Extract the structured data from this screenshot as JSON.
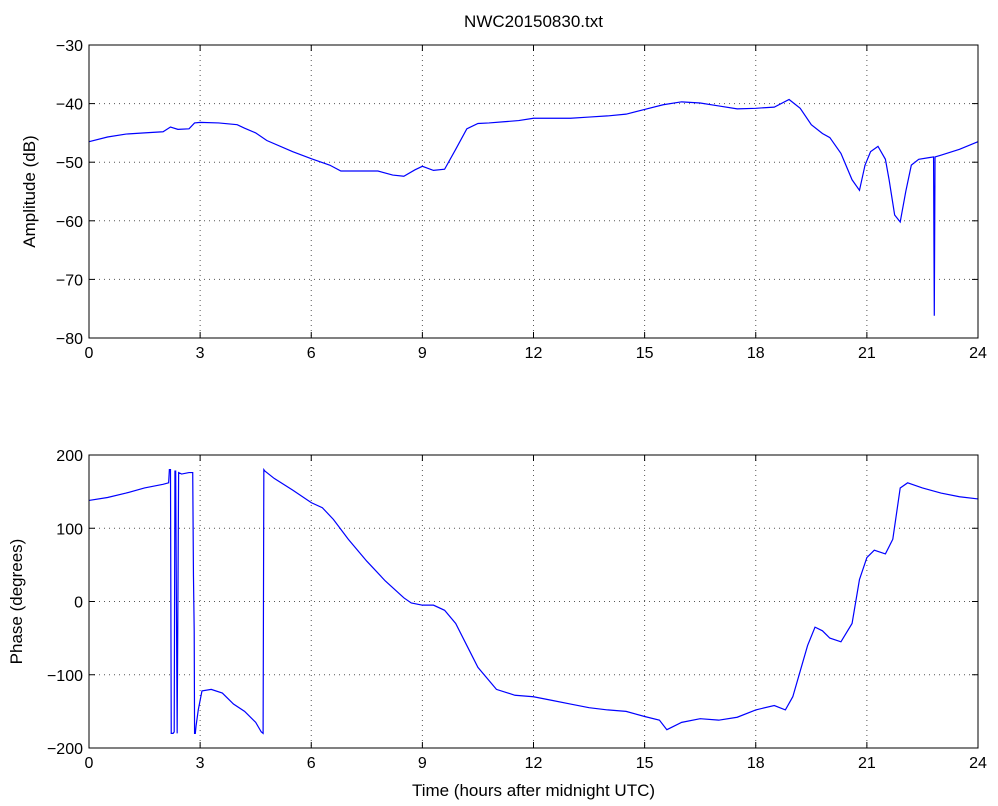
{
  "chart_data": [
    {
      "type": "line",
      "title": "NWC20150830.txt",
      "xlabel": "",
      "ylabel": "Amplitude (dB)",
      "xlim": [
        0,
        24
      ],
      "ylim": [
        -80,
        -30
      ],
      "xticks": [
        0,
        3,
        6,
        9,
        12,
        15,
        18,
        21,
        24
      ],
      "yticks": [
        -80,
        -70,
        -60,
        -50,
        -40,
        -30
      ],
      "ytick_labels": [
        "−80",
        "−70",
        "−60",
        "−50",
        "−40",
        "−30"
      ],
      "grid": true,
      "color": "#0000ff",
      "series": [
        {
          "x": [
            0,
            0.5,
            1,
            1.5,
            2,
            2.2,
            2.4,
            2.7,
            2.85,
            3,
            3.5,
            4,
            4.2,
            4.5,
            4.8,
            5.5,
            6,
            6.5,
            6.8,
            7.2,
            7.8,
            8.2,
            8.5,
            8.8,
            9,
            9.3,
            9.6,
            9.9,
            10.2,
            10.5,
            10.8,
            11.2,
            11.6,
            12,
            12.5,
            13,
            13.5,
            14,
            14.5,
            15,
            15.5,
            16,
            16.5,
            17,
            17.5,
            18,
            18.5,
            18.9,
            19.2,
            19.5,
            19.8,
            20,
            20.3,
            20.6,
            20.8,
            20.95,
            21.1,
            21.3,
            21.5,
            21.6,
            21.75,
            21.9,
            22.05,
            22.2,
            22.4,
            22.7,
            22.8,
            22.82,
            22.84,
            23,
            23.5,
            24
          ],
          "y": [
            -46.5,
            -45.7,
            -45.2,
            -45,
            -44.8,
            -44,
            -44.4,
            -44.3,
            -43.3,
            -43.2,
            -43.3,
            -43.6,
            -44.2,
            -45,
            -46.3,
            -48.2,
            -49.4,
            -50.5,
            -51.5,
            -51.5,
            -51.5,
            -52.2,
            -52.4,
            -51.3,
            -50.7,
            -51.4,
            -51.2,
            -47.8,
            -44.3,
            -43.4,
            -43.3,
            -43.1,
            -42.9,
            -42.5,
            -42.5,
            -42.5,
            -42.3,
            -42.1,
            -41.8,
            -41,
            -40.2,
            -39.7,
            -39.9,
            -40.4,
            -40.9,
            -40.8,
            -40.6,
            -39.3,
            -40.8,
            -43.6,
            -45.1,
            -45.8,
            -48.5,
            -53,
            -54.8,
            -50.5,
            -48.2,
            -47.3,
            -49.5,
            -53,
            -59,
            -60.2,
            -55,
            -50.5,
            -49.5,
            -49.2,
            -49.1,
            -76.2,
            -49.1,
            -48.8,
            -47.8,
            -46.5
          ]
        }
      ]
    },
    {
      "type": "line",
      "title": "",
      "xlabel": "Time (hours after midnight UTC)",
      "ylabel": "Phase (degrees)",
      "xlim": [
        0,
        24
      ],
      "ylim": [
        -200,
        200
      ],
      "xticks": [
        0,
        3,
        6,
        9,
        12,
        15,
        18,
        21,
        24
      ],
      "yticks": [
        -200,
        -100,
        0,
        100,
        200
      ],
      "ytick_labels": [
        "−200",
        "−100",
        "0",
        "100",
        "200"
      ],
      "grid": true,
      "color": "#0000ff",
      "series": [
        {
          "x": [
            0,
            0.5,
            1,
            1.5,
            2,
            2.15,
            2.17,
            2.2,
            2.22,
            2.27,
            2.3,
            2.32,
            2.34,
            2.38,
            2.42,
            2.5,
            2.7,
            2.8,
            2.82,
            2.84,
            2.85,
            2.87,
            2.89,
            2.95,
            3.05,
            3.3,
            3.6,
            3.9,
            4.2,
            4.5,
            4.65,
            4.7,
            4.72,
            4.75,
            5,
            5.5,
            6,
            6.3,
            6.6,
            7,
            7.5,
            8,
            8.5,
            8.7,
            9,
            9.3,
            9.6,
            9.9,
            10.2,
            10.5,
            11,
            11.5,
            12,
            12.5,
            13,
            13.5,
            14,
            14.5,
            15,
            15.4,
            15.6,
            16,
            16.5,
            17,
            17.5,
            18,
            18.5,
            18.8,
            19,
            19.2,
            19.4,
            19.6,
            19.8,
            20,
            20.3,
            20.6,
            20.8,
            21,
            21.2,
            21.5,
            21.7,
            21.9,
            22.1,
            22.5,
            23,
            23.5,
            24
          ],
          "y": [
            138,
            142,
            148,
            155,
            160,
            162,
            180,
            180,
            -180,
            -180,
            -178,
            178,
            178,
            -180,
            176,
            174,
            176,
            176,
            35,
            -40,
            -180,
            -180,
            -170,
            -148,
            -122,
            -120,
            -125,
            -140,
            -150,
            -165,
            -178,
            -180,
            180,
            178,
            168,
            152,
            135,
            128,
            112,
            85,
            55,
            28,
            5,
            -2,
            -5,
            -5,
            -12,
            -30,
            -60,
            -90,
            -120,
            -128,
            -130,
            -135,
            -140,
            -145,
            -148,
            -150,
            -157,
            -162,
            -175,
            -165,
            -160,
            -162,
            -158,
            -148,
            -142,
            -148,
            -130,
            -95,
            -60,
            -35,
            -40,
            -50,
            -55,
            -30,
            30,
            60,
            70,
            65,
            85,
            155,
            162,
            155,
            148,
            143,
            140
          ]
        }
      ]
    }
  ]
}
